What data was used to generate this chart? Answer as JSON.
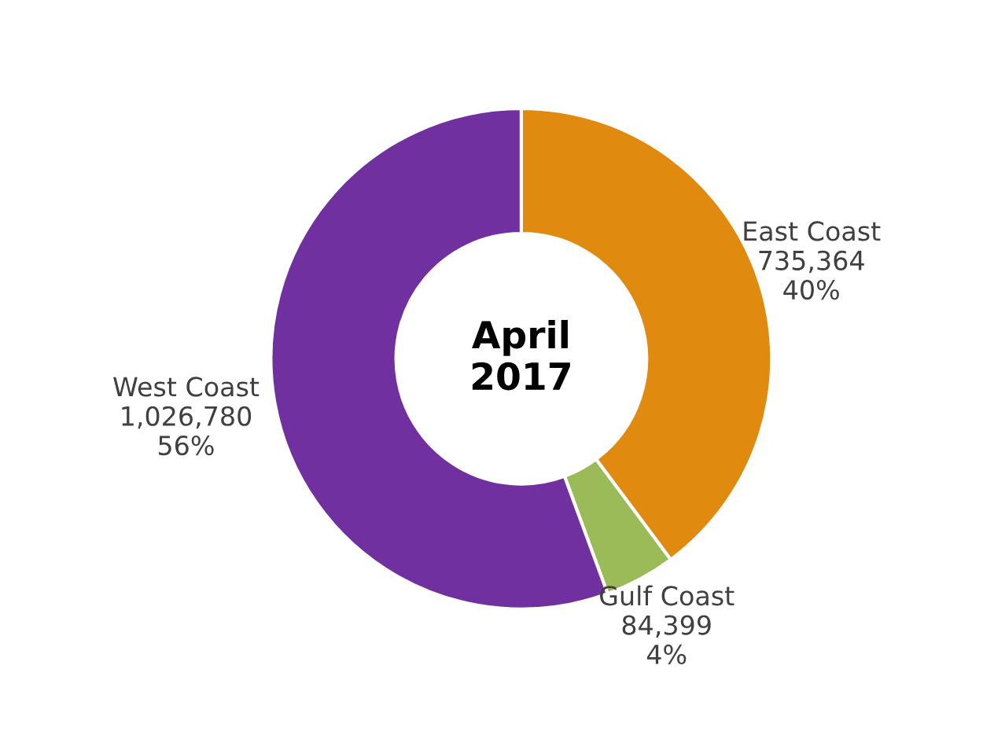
{
  "chart_data": {
    "type": "donut",
    "title": "April\n2017",
    "categories": [
      "East Coast",
      "Gulf Coast",
      "West Coast"
    ],
    "values": [
      735364,
      84399,
      1026780
    ],
    "value_labels": [
      "735,364\n40%",
      "84,399\n4%",
      "1,026,780\n56%"
    ],
    "colors": [
      "#e08a10",
      "#9bbb59",
      "#7030a0"
    ]
  }
}
